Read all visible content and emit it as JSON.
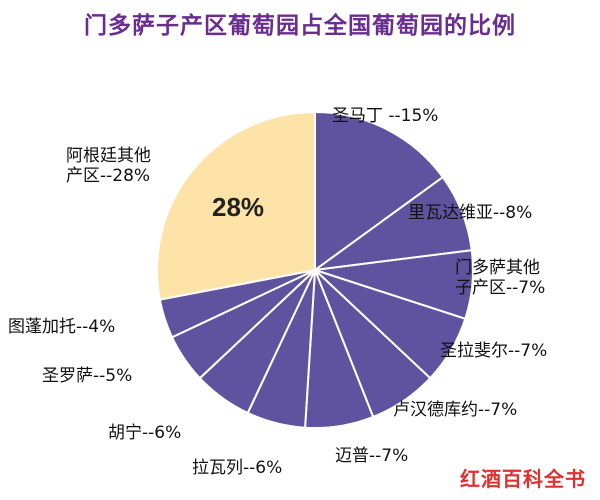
{
  "title": "门多萨子产区葡萄园占全国葡萄园的比例",
  "watermark": "红酒百科全书",
  "highlight_label": "28%",
  "colors": {
    "title": "#6a2c91",
    "primary": "#5f53a0",
    "highlight": "#fde3a7",
    "stroke": "#ffffff",
    "watermark": "#e03030"
  },
  "chart_data": {
    "type": "pie",
    "title": "门多萨子产区葡萄园占全国葡萄园的比例",
    "start": "top",
    "direction": "clockwise",
    "slices": [
      {
        "label": "圣马丁",
        "value": 15,
        "text": "圣马丁 --15%"
      },
      {
        "label": "里瓦达维亚",
        "value": 8,
        "text": "里瓦达维亚--8%"
      },
      {
        "label": "门多萨其他子产区",
        "value": 7,
        "lines": [
          "门多萨其他",
          "子产区--7%"
        ]
      },
      {
        "label": "圣拉斐尔",
        "value": 7,
        "text": "圣拉斐尔--7%"
      },
      {
        "label": "卢汉德库约",
        "value": 7,
        "text": "卢汉德库约--7%"
      },
      {
        "label": "迈普",
        "value": 7,
        "text": "迈普--7%"
      },
      {
        "label": "拉瓦列",
        "value": 6,
        "text": "拉瓦列--6%"
      },
      {
        "label": "胡宁",
        "value": 6,
        "text": "胡宁--6%"
      },
      {
        "label": "圣罗萨",
        "value": 5,
        "text": "圣罗萨--5%"
      },
      {
        "label": "图蓬加托",
        "value": 4,
        "text": "图蓬加托--4%"
      },
      {
        "label": "阿根廷其他产区",
        "value": 28,
        "lines": [
          "阿根廷其他",
          "产区--28%"
        ],
        "highlight": true
      }
    ]
  }
}
